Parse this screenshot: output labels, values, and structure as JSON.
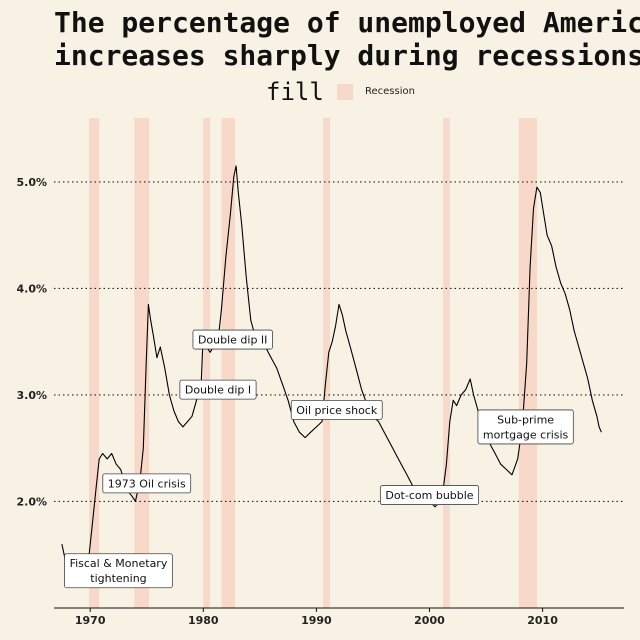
{
  "chart_data": {
    "type": "line",
    "title_lines": [
      "The percentage of unemployed Americ",
      "increases sharply during recessions"
    ],
    "xlabel": "",
    "ylabel": "",
    "legend": {
      "title": "fill",
      "label": "Recession",
      "placement": "top-center"
    },
    "xlim": [
      1966.8,
      2017.2
    ],
    "ylim": [
      1.0,
      5.6
    ],
    "x_ticks": [
      1970,
      1980,
      1990,
      2000,
      2010
    ],
    "x_tick_labels": [
      "1970",
      "1980",
      "1990",
      "2000",
      "2010"
    ],
    "y_ticks": [
      2.0,
      3.0,
      4.0,
      5.0
    ],
    "y_tick_labels": [
      "2.0%",
      "3.0%",
      "4.0%",
      "5.0%"
    ],
    "grid": "horizontal dotted",
    "colors": {
      "background": "#f8f2e5",
      "line": "#000000",
      "recession": "#f8d8c8"
    },
    "recessions": [
      {
        "start": 1969.9,
        "end": 1970.8
      },
      {
        "start": 1973.9,
        "end": 1975.2
      },
      {
        "start": 1980.0,
        "end": 1980.6
      },
      {
        "start": 1981.6,
        "end": 1982.8
      },
      {
        "start": 1990.6,
        "end": 1991.2
      },
      {
        "start": 2001.2,
        "end": 2001.8
      },
      {
        "start": 2007.9,
        "end": 2009.5
      }
    ],
    "series": [
      {
        "x": [
          1967.5,
          1967.8,
          1968.0,
          1968.3,
          1968.6,
          1968.9,
          1969.2,
          1969.6,
          1969.9,
          1970.2,
          1970.5,
          1970.8,
          1971.1,
          1971.5,
          1971.9,
          1972.3,
          1972.7,
          1973.0,
          1973.3,
          1973.7,
          1974.0,
          1974.4,
          1974.7,
          1974.95,
          1975.15,
          1975.35,
          1975.6,
          1975.9,
          1976.2,
          1976.6,
          1977.0,
          1977.4,
          1977.8,
          1978.2,
          1978.6,
          1979.0,
          1979.4,
          1979.8,
          1980.0,
          1980.3,
          1980.6,
          1980.9,
          1981.3,
          1981.6,
          1982.0,
          1982.4,
          1982.7,
          1982.9,
          1983.1,
          1983.4,
          1983.8,
          1984.2,
          1984.6,
          1985.0,
          1985.5,
          1986.0,
          1986.5,
          1987.0,
          1987.5,
          1988.0,
          1988.5,
          1989.0,
          1989.5,
          1990.0,
          1990.5,
          1990.8,
          1991.1,
          1991.4,
          1991.7,
          1992.0,
          1992.3,
          1992.6,
          1993.0,
          1993.5,
          1994.0,
          1994.5,
          1995.0,
          1995.5,
          1996.0,
          1996.5,
          1997.0,
          1997.5,
          1998.0,
          1998.5,
          1999.0,
          1999.5,
          2000.0,
          2000.5,
          2000.9,
          2001.2,
          2001.5,
          2001.8,
          2002.1,
          2002.4,
          2002.8,
          2003.2,
          2003.6,
          2003.9,
          2004.3,
          2004.8,
          2005.3,
          2005.8,
          2006.3,
          2006.8,
          2007.3,
          2007.8,
          2008.2,
          2008.6,
          2008.9,
          2009.2,
          2009.5,
          2009.8,
          2010.1,
          2010.4,
          2010.8,
          2011.2,
          2011.6,
          2012.0,
          2012.4,
          2012.8,
          2013.2,
          2013.6,
          2014.0,
          2014.4,
          2014.8,
          2015.0,
          2015.2
        ],
        "y": [
          1.6,
          1.45,
          1.5,
          1.4,
          1.35,
          1.3,
          1.35,
          1.4,
          1.5,
          1.8,
          2.1,
          2.4,
          2.45,
          2.4,
          2.45,
          2.35,
          2.3,
          2.2,
          2.1,
          2.05,
          2.0,
          2.2,
          2.5,
          3.3,
          3.85,
          3.7,
          3.55,
          3.35,
          3.45,
          3.25,
          3.0,
          2.85,
          2.75,
          2.7,
          2.75,
          2.8,
          2.95,
          3.05,
          3.6,
          3.45,
          3.4,
          3.45,
          3.5,
          3.8,
          4.3,
          4.7,
          5.05,
          5.15,
          4.9,
          4.6,
          4.1,
          3.7,
          3.55,
          3.5,
          3.45,
          3.35,
          3.25,
          3.1,
          2.95,
          2.75,
          2.65,
          2.6,
          2.65,
          2.7,
          2.75,
          3.1,
          3.4,
          3.5,
          3.65,
          3.85,
          3.75,
          3.6,
          3.45,
          3.25,
          3.05,
          2.9,
          2.8,
          2.75,
          2.65,
          2.55,
          2.45,
          2.35,
          2.25,
          2.15,
          2.1,
          2.05,
          2.0,
          1.95,
          2.0,
          2.1,
          2.35,
          2.75,
          2.95,
          2.9,
          3.0,
          3.05,
          3.15,
          3.0,
          2.85,
          2.7,
          2.55,
          2.45,
          2.35,
          2.3,
          2.25,
          2.4,
          2.7,
          3.3,
          4.2,
          4.75,
          4.95,
          4.9,
          4.7,
          4.5,
          4.4,
          4.2,
          4.05,
          3.95,
          3.8,
          3.6,
          3.45,
          3.3,
          3.15,
          2.95,
          2.8,
          2.7,
          2.65
        ]
      }
    ],
    "annotations": [
      {
        "lines": [
          "Fiscal & Monetary",
          "tightening"
        ],
        "x": 1972.5,
        "y": 1.35
      },
      {
        "lines": [
          "1973 Oil crisis"
        ],
        "x": 1975.0,
        "y": 2.17
      },
      {
        "lines": [
          "Double dip I"
        ],
        "x": 1981.3,
        "y": 3.05
      },
      {
        "lines": [
          "Double dip II"
        ],
        "x": 1982.6,
        "y": 3.52
      },
      {
        "lines": [
          "Oil price shock"
        ],
        "x": 1991.8,
        "y": 2.86
      },
      {
        "lines": [
          "Dot-com bubble"
        ],
        "x": 2000.0,
        "y": 2.06
      },
      {
        "lines": [
          "Sub-prime",
          "mortgage crisis"
        ],
        "x": 2008.5,
        "y": 2.7
      }
    ]
  }
}
